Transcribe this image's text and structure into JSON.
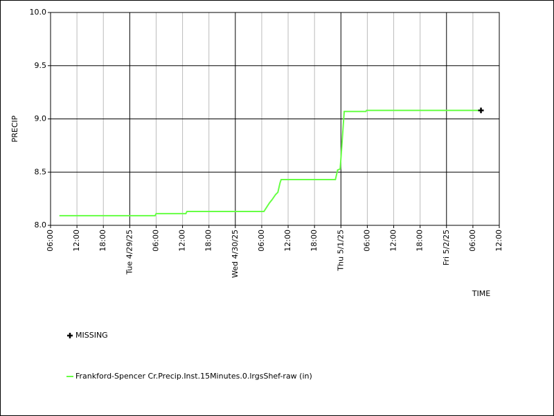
{
  "chart_data": {
    "type": "line",
    "x_label": "TIME",
    "y_label": "PRECIP",
    "x": [
      "2025-04-28T08:00",
      "2025-04-29T05:45",
      "2025-04-29T06:00",
      "2025-04-29T12:45",
      "2025-04-29T13:00",
      "2025-04-30T06:30",
      "2025-04-30T07:45",
      "2025-04-30T08:20",
      "2025-04-30T09:10",
      "2025-04-30T09:40",
      "2025-04-30T10:10",
      "2025-04-30T10:25",
      "2025-04-30T22:45",
      "2025-04-30T23:15",
      "2025-04-30T23:50",
      "2025-05-01T00:45",
      "2025-05-01T05:40",
      "2025-05-01T05:50",
      "2025-05-02T07:50"
    ],
    "series": [
      {
        "name": "Frankford-Spencer Cr.Precip.Inst.15Minutes.0.lrgsShef-raw (in)",
        "color": "#66ff44",
        "style": "line",
        "values": [
          8.09,
          8.09,
          8.11,
          8.11,
          8.13,
          8.13,
          8.21,
          8.24,
          8.29,
          8.31,
          8.4,
          8.43,
          8.43,
          8.52,
          8.53,
          9.07,
          9.07,
          9.08,
          9.08
        ]
      },
      {
        "name": "MISSING",
        "color": "#000000",
        "style": "plus",
        "values": [
          null,
          null,
          null,
          null,
          null,
          null,
          null,
          null,
          null,
          null,
          null,
          null,
          null,
          null,
          null,
          null,
          null,
          null,
          9.08
        ]
      }
    ],
    "xlim": [
      "2025-04-28T06:00",
      "2025-05-02T12:00"
    ],
    "xticks": [
      {
        "value": "2025-04-28T06:00",
        "label": "06:00"
      },
      {
        "value": "2025-04-28T12:00",
        "label": "12:00"
      },
      {
        "value": "2025-04-28T18:00",
        "label": "18:00"
      },
      {
        "value": "2025-04-29T00:00",
        "label": "Tue 4/29/25"
      },
      {
        "value": "2025-04-29T06:00",
        "label": "06:00"
      },
      {
        "value": "2025-04-29T12:00",
        "label": "12:00"
      },
      {
        "value": "2025-04-29T18:00",
        "label": "18:00"
      },
      {
        "value": "2025-04-30T00:00",
        "label": "Wed 4/30/25"
      },
      {
        "value": "2025-04-30T06:00",
        "label": "06:00"
      },
      {
        "value": "2025-04-30T12:00",
        "label": "12:00"
      },
      {
        "value": "2025-04-30T18:00",
        "label": "18:00"
      },
      {
        "value": "2025-05-01T00:00",
        "label": "Thu 5/1/25"
      },
      {
        "value": "2025-05-01T06:00",
        "label": "06:00"
      },
      {
        "value": "2025-05-01T12:00",
        "label": "12:00"
      },
      {
        "value": "2025-05-01T18:00",
        "label": "18:00"
      },
      {
        "value": "2025-05-02T00:00",
        "label": "Fri 5/2/25"
      },
      {
        "value": "2025-05-02T06:00",
        "label": "06:00"
      },
      {
        "value": "2025-05-02T12:00",
        "label": "12:00"
      }
    ],
    "ylim": [
      8.0,
      10.0
    ],
    "yticks": [
      {
        "value": 8.0,
        "label": "8.0"
      },
      {
        "value": 8.5,
        "label": "8.5"
      },
      {
        "value": 9.0,
        "label": "9.0"
      },
      {
        "value": 9.5,
        "label": "9.5"
      },
      {
        "value": 10.0,
        "label": "10.0"
      }
    ],
    "grid": true
  }
}
